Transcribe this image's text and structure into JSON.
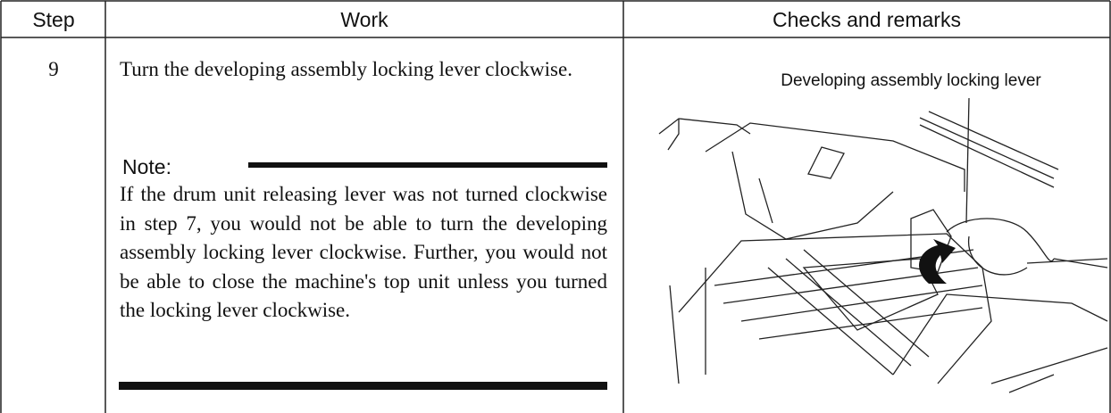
{
  "table": {
    "columns": [
      "Step",
      "Work",
      "Checks and remarks"
    ],
    "rows": [
      {
        "step": "9",
        "work": "Turn the developing assembly locking lever clockwise.",
        "note_label": "Note:",
        "note": "If the drum unit releasing lever was not turned clockwise in step 7, you would not be able to turn the developing assembly locking lever clockwise. Further, you would not be able to close the machine's top unit unless you turned the locking lever clockwise.",
        "figure_label": "Developing assembly locking lever"
      }
    ]
  }
}
